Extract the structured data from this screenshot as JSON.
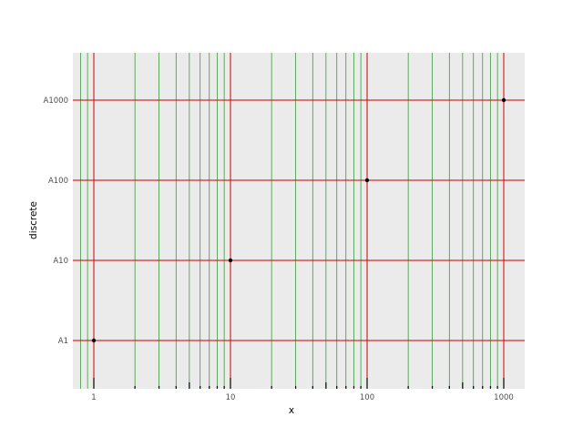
{
  "chart_data": {
    "type": "scatter",
    "title": "",
    "xlabel": "x",
    "ylabel": "discrete",
    "x_scale": "log10",
    "xlim": [
      0.7,
      1400
    ],
    "x_major_ticks": [
      1,
      10,
      100,
      1000
    ],
    "x_major_tick_labels": [
      "1",
      "10",
      "100",
      "1000"
    ],
    "x_minor_ticks": [
      0.8,
      0.9,
      2,
      3,
      4,
      5,
      6,
      7,
      8,
      9,
      20,
      30,
      40,
      50,
      60,
      70,
      80,
      90,
      200,
      300,
      400,
      500,
      600,
      700,
      800,
      900
    ],
    "y_categories": [
      "A1",
      "A10",
      "A100",
      "A1000"
    ],
    "points": [
      {
        "x": 1,
        "y": "A1"
      },
      {
        "x": 10,
        "y": "A10"
      },
      {
        "x": 100,
        "y": "A100"
      },
      {
        "x": 1000,
        "y": "A1000"
      }
    ],
    "rug_ticks": [
      1,
      2,
      3,
      4,
      5,
      6,
      7,
      8,
      9,
      10,
      20,
      30,
      40,
      50,
      60,
      70,
      80,
      90,
      100,
      200,
      300,
      400,
      500,
      600,
      700,
      800,
      900,
      1000
    ],
    "grid": true,
    "colors": {
      "panel_background": "#ebebeb",
      "major_grid": "#cc0000",
      "minor_grid": "#3a9a3a",
      "point": "#000000",
      "rug": "#000000",
      "tick_label": "#4d4d4d"
    }
  }
}
